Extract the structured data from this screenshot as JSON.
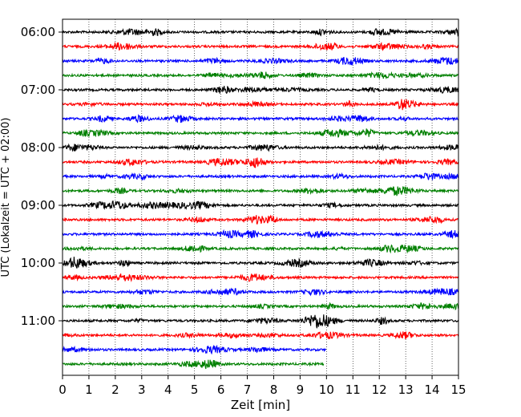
{
  "chart_data": {
    "type": "line",
    "title": "",
    "xlabel": "Zeit  [min]",
    "ylabel": "UTC (Lokalzeit = UTC + 02:00)",
    "xlim": [
      0,
      15
    ],
    "x_ticks": [
      "0",
      "1",
      "2",
      "3",
      "4",
      "5",
      "6",
      "7",
      "8",
      "9",
      "10",
      "11",
      "12",
      "13",
      "14",
      "15"
    ],
    "y_tick_labels": [
      "06:00",
      "07:00",
      "08:00",
      "09:00",
      "10:00",
      "11:00"
    ],
    "trace_interval_min": 15,
    "grid": "vertical dotted at each minute",
    "color_cycle": [
      "#000000",
      "#ff0000",
      "#0000ff",
      "#008000"
    ],
    "traces": [
      {
        "start": "06:00",
        "end_min": 15
      },
      {
        "start": "06:15",
        "end_min": 15
      },
      {
        "start": "06:30",
        "end_min": 15
      },
      {
        "start": "06:45",
        "end_min": 15
      },
      {
        "start": "07:00",
        "end_min": 15
      },
      {
        "start": "07:15",
        "end_min": 15
      },
      {
        "start": "07:30",
        "end_min": 15
      },
      {
        "start": "07:45",
        "end_min": 15
      },
      {
        "start": "08:00",
        "end_min": 15
      },
      {
        "start": "08:15",
        "end_min": 15
      },
      {
        "start": "08:30",
        "end_min": 15
      },
      {
        "start": "08:45",
        "end_min": 15
      },
      {
        "start": "09:00",
        "end_min": 15
      },
      {
        "start": "09:15",
        "end_min": 15
      },
      {
        "start": "09:30",
        "end_min": 15
      },
      {
        "start": "09:45",
        "end_min": 15
      },
      {
        "start": "10:00",
        "end_min": 15
      },
      {
        "start": "10:15",
        "end_min": 15
      },
      {
        "start": "10:30",
        "end_min": 15
      },
      {
        "start": "10:45",
        "end_min": 15
      },
      {
        "start": "11:00",
        "end_min": 15
      },
      {
        "start": "11:15",
        "end_min": 15
      },
      {
        "start": "11:30",
        "end_min": 10
      },
      {
        "start": "11:45",
        "end_min": 9.9
      }
    ]
  }
}
